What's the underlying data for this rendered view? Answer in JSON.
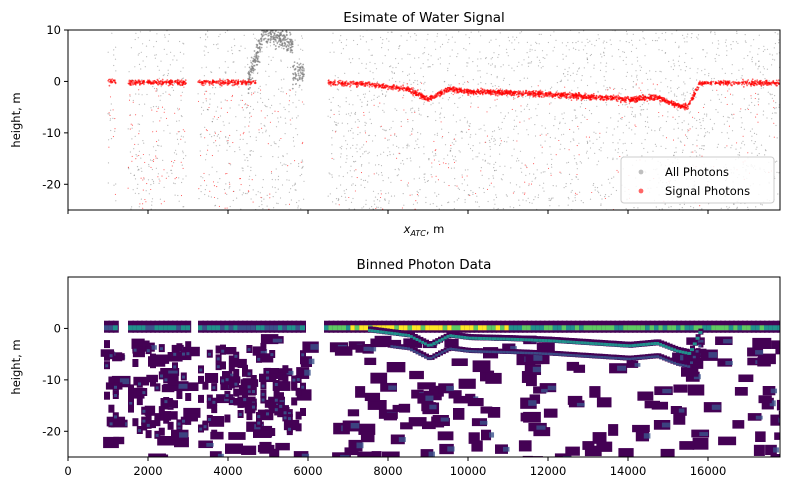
{
  "chart_data": [
    {
      "type": "scatter",
      "title": "Esimate of Water Signal",
      "xlabel_main": "x",
      "xlabel_sub": "ATC",
      "xlabel_tail": ", m",
      "ylabel": "height, m",
      "xlim": [
        0,
        17800
      ],
      "ylim": [
        -25,
        10
      ],
      "yticks": [
        10,
        0,
        -10,
        -20
      ],
      "xticks": [
        0,
        2000,
        4000,
        6000,
        8000,
        10000,
        12000,
        14000,
        16000
      ],
      "xtick_labels_visible": false,
      "legend": "bottom-right",
      "series": [
        {
          "name": "All Photons",
          "color": "#808080",
          "alpha": 0.5
        },
        {
          "name": "Signal Photons",
          "color": "#ff0000",
          "alpha": 0.6
        }
      ],
      "signal_surface": [
        [
          1000,
          0
        ],
        [
          1300,
          0
        ],
        [
          1600,
          -0.2
        ],
        [
          2200,
          -0.2
        ],
        [
          2900,
          -0.2
        ],
        [
          3300,
          -0.2
        ],
        [
          3800,
          -0.2
        ],
        [
          4500,
          -0.2
        ],
        [
          6500,
          -0.3
        ],
        [
          7500,
          -0.5
        ],
        [
          8500,
          -1.5
        ],
        [
          9000,
          -3.5
        ],
        [
          9500,
          -1.5
        ],
        [
          10000,
          -2
        ],
        [
          11000,
          -2.2
        ],
        [
          12000,
          -2.5
        ],
        [
          13000,
          -3
        ],
        [
          14000,
          -3.5
        ],
        [
          14700,
          -3
        ],
        [
          15200,
          -4.5
        ],
        [
          15500,
          -5
        ],
        [
          15800,
          -0.3
        ],
        [
          17800,
          -0.3
        ]
      ],
      "data_gaps": [
        [
          1200,
          1500
        ],
        [
          2950,
          3250
        ],
        [
          5900,
          6500
        ]
      ],
      "land_segment": {
        "x_range": [
          4500,
          5900
        ],
        "y_range": [
          0,
          10
        ]
      }
    },
    {
      "type": "heatmap",
      "title": "Binned Photon Data",
      "ylabel": "height, m",
      "xlim": [
        0,
        17800
      ],
      "ylim": [
        -25,
        10
      ],
      "yticks": [
        0,
        -10,
        -20
      ],
      "xticks": [
        0,
        2000,
        4000,
        6000,
        8000,
        10000,
        12000,
        14000,
        16000
      ],
      "colormap": "viridis",
      "colormap_colors": [
        "#440154",
        "#3b528b",
        "#21918c",
        "#5ec962",
        "#fde725"
      ],
      "bright_band": {
        "x_range": [
          6500,
          17800
        ],
        "y": 0
      }
    }
  ]
}
